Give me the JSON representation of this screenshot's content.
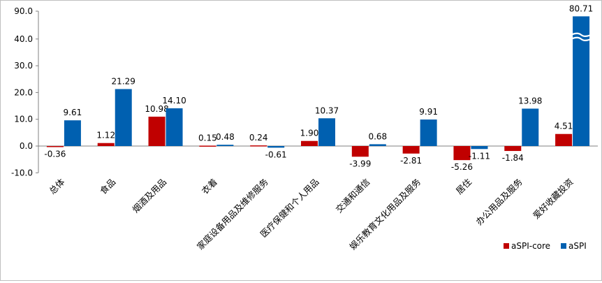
{
  "chart_data": {
    "type": "bar",
    "categories": [
      "总体",
      "食品",
      "烟酒及用品",
      "衣着",
      "家庭设备用品及维修服务",
      "医疗保健和个人用品",
      "交通和通信",
      "娱乐教育文化用品及服务",
      "居住",
      "办公用品及服务",
      "爱好收藏投资"
    ],
    "series": [
      {
        "name": "aSPI-core",
        "values": [
          -0.36,
          1.12,
          10.98,
          0.15,
          0.24,
          1.9,
          -3.99,
          -2.81,
          -5.26,
          -1.84,
          4.51
        ],
        "color": "#C00000"
      },
      {
        "name": "aSPI",
        "values": [
          9.61,
          21.29,
          14.1,
          0.48,
          -0.61,
          10.37,
          0.68,
          9.91,
          -1.11,
          13.98,
          80.71
        ],
        "color": "#0060B0"
      }
    ],
    "data_labels": {
      "aSPI-core": [
        "-0.36",
        "1.12",
        "10.98",
        "0.15",
        "0.24",
        "1.90",
        "-3.99",
        "-2.81",
        "-5.26",
        "-1.84",
        "4.51"
      ],
      "aSPI": [
        "9.61",
        "21.29",
        "14.10",
        "0.48",
        "-0.61",
        "10.37",
        "0.68",
        "9.91",
        "-1.11",
        "13.98",
        "80.71"
      ]
    },
    "y_ticks": [
      "90.0",
      "40.0",
      "30.0",
      "20.0",
      "10.0",
      "0.0",
      "-10.0"
    ],
    "y_break": {
      "axis_from": 40,
      "axis_to": 90
    },
    "ylim": [
      -10,
      90
    ],
    "title": "",
    "xlabel": "",
    "ylabel": "",
    "grid": false,
    "legend": "bottom-right"
  }
}
